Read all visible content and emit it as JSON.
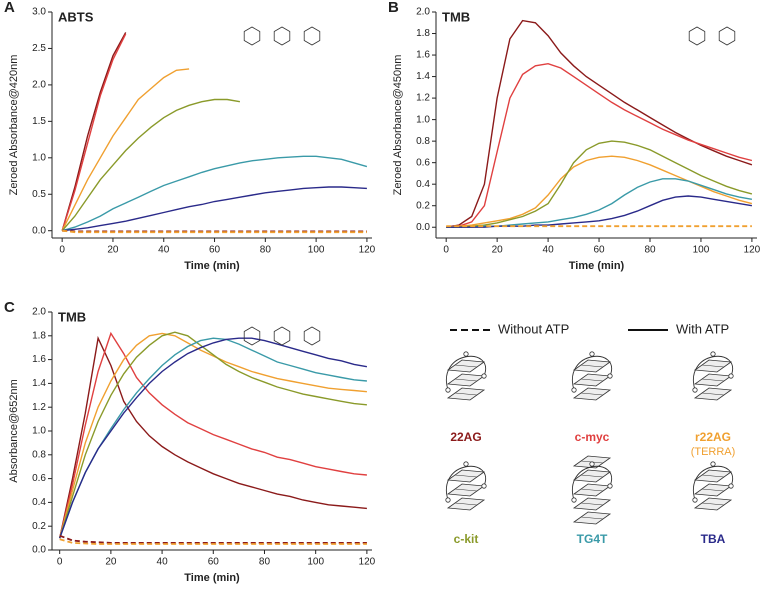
{
  "chart_data": [
    {
      "type": "line",
      "panel": "A",
      "title": "ABTS",
      "x_label": "Time (min)",
      "y_label": "Zeroed Absorbance@420nm",
      "x": [
        0,
        5,
        10,
        15,
        20,
        25,
        30,
        35,
        40,
        45,
        50,
        55,
        60,
        65,
        70,
        75,
        80,
        85,
        90,
        95,
        100,
        105,
        110,
        115,
        120
      ],
      "xlim": [
        -4,
        122
      ],
      "xticks": [
        0,
        20,
        40,
        60,
        80,
        100,
        120
      ],
      "ylim": [
        -0.1,
        3.0
      ],
      "yticks": [
        {
          "value": 0,
          "label": "0.0"
        },
        {
          "value": 0.5,
          "label": "0.5"
        },
        {
          "value": 1,
          "label": "1.0"
        },
        {
          "value": 1.5,
          "label": "1.5"
        },
        {
          "value": 2,
          "label": "2.0"
        },
        {
          "value": 2.5,
          "label": "2.5"
        },
        {
          "value": 3,
          "label": "3.0"
        }
      ],
      "series": [
        {
          "name": "22AG",
          "color": "#8b1a1a",
          "style": "solid",
          "values": [
            0,
            0.6,
            1.3,
            1.9,
            2.4,
            2.72,
            null,
            null,
            null,
            null,
            null,
            null,
            null,
            null,
            null,
            null,
            null,
            null,
            null,
            null,
            null,
            null,
            null,
            null,
            null
          ]
        },
        {
          "name": "c-myc",
          "color": "#e04040",
          "style": "solid",
          "values": [
            0,
            0.55,
            1.2,
            1.85,
            2.35,
            2.7,
            null,
            null,
            null,
            null,
            null,
            null,
            null,
            null,
            null,
            null,
            null,
            null,
            null,
            null,
            null,
            null,
            null,
            null,
            null
          ]
        },
        {
          "name": "r22AG",
          "color": "#f0a030",
          "style": "solid",
          "values": [
            0,
            0.35,
            0.7,
            1.0,
            1.3,
            1.55,
            1.8,
            1.95,
            2.1,
            2.2,
            2.22,
            null,
            null,
            null,
            null,
            null,
            null,
            null,
            null,
            null,
            null,
            null,
            null,
            null,
            null
          ]
        },
        {
          "name": "c-kit",
          "color": "#8a9a2a",
          "style": "solid",
          "values": [
            0,
            0.2,
            0.45,
            0.7,
            0.9,
            1.1,
            1.27,
            1.42,
            1.55,
            1.65,
            1.72,
            1.77,
            1.8,
            1.8,
            1.77,
            null,
            null,
            null,
            null,
            null,
            null,
            null,
            null,
            null,
            null
          ]
        },
        {
          "name": "TG4T",
          "color": "#3a9aa8",
          "style": "solid",
          "values": [
            0,
            0.05,
            0.12,
            0.2,
            0.3,
            0.38,
            0.46,
            0.54,
            0.62,
            0.68,
            0.74,
            0.8,
            0.85,
            0.89,
            0.93,
            0.96,
            0.98,
            1.0,
            1.01,
            1.02,
            1.02,
            1.0,
            0.98,
            0.93,
            0.88
          ]
        },
        {
          "name": "TBA",
          "color": "#2a2a8a",
          "style": "solid",
          "values": [
            0,
            0.02,
            0.04,
            0.07,
            0.1,
            0.13,
            0.17,
            0.21,
            0.25,
            0.29,
            0.33,
            0.36,
            0.4,
            0.43,
            0.46,
            0.49,
            0.52,
            0.54,
            0.56,
            0.58,
            0.59,
            0.6,
            0.6,
            0.59,
            0.58
          ]
        },
        {
          "color": "#8b1a1a",
          "style": "dashed",
          "values": [
            0,
            -0.01,
            -0.01,
            -0.01,
            -0.01,
            -0.01,
            -0.01,
            -0.01,
            -0.01,
            -0.01,
            -0.01,
            -0.01,
            -0.01,
            -0.01,
            -0.01,
            -0.01,
            -0.01,
            -0.01,
            -0.01,
            -0.01,
            -0.01,
            -0.01,
            -0.01,
            -0.01,
            -0.01
          ]
        },
        {
          "color": "#f0a030",
          "style": "dashed",
          "values": [
            0,
            -0.02,
            -0.02,
            -0.02,
            -0.02,
            -0.02,
            -0.02,
            -0.02,
            -0.02,
            -0.02,
            -0.02,
            -0.02,
            -0.02,
            -0.02,
            -0.02,
            -0.02,
            -0.02,
            -0.02,
            -0.02,
            -0.02,
            -0.02,
            -0.02,
            -0.02,
            -0.02,
            -0.02
          ]
        }
      ]
    },
    {
      "type": "line",
      "panel": "B",
      "title": "TMB",
      "x_label": "Time (min)",
      "y_label": "Zeroed Absorbance@450nm",
      "x": [
        0,
        5,
        10,
        15,
        20,
        25,
        30,
        35,
        40,
        45,
        50,
        55,
        60,
        65,
        70,
        75,
        80,
        85,
        90,
        95,
        100,
        105,
        110,
        115,
        120
      ],
      "xlim": [
        -4,
        122
      ],
      "xticks": [
        0,
        20,
        40,
        60,
        80,
        100,
        120
      ],
      "ylim": [
        -0.1,
        2.0
      ],
      "yticks": [
        {
          "value": 0,
          "label": "0.0"
        },
        {
          "value": 0.2,
          "label": "0.2"
        },
        {
          "value": 0.4,
          "label": "0.4"
        },
        {
          "value": 0.6,
          "label": "0.6"
        },
        {
          "value": 0.8,
          "label": "0.8"
        },
        {
          "value": 1,
          "label": "1.0"
        },
        {
          "value": 1.2,
          "label": "1.2"
        },
        {
          "value": 1.4,
          "label": "1.4"
        },
        {
          "value": 1.6,
          "label": "1.6"
        },
        {
          "value": 1.8,
          "label": "1.8"
        },
        {
          "value": 2,
          "label": "2.0"
        }
      ],
      "series": [
        {
          "color": "#8b1a1a",
          "style": "solid",
          "values": [
            0,
            0.02,
            0.1,
            0.4,
            1.2,
            1.75,
            1.92,
            1.9,
            1.78,
            1.62,
            1.5,
            1.4,
            1.32,
            1.24,
            1.16,
            1.09,
            1.02,
            0.95,
            0.88,
            0.82,
            0.76,
            0.71,
            0.66,
            0.62,
            0.58
          ]
        },
        {
          "color": "#e04040",
          "style": "solid",
          "values": [
            0,
            0.01,
            0.05,
            0.2,
            0.7,
            1.2,
            1.42,
            1.5,
            1.52,
            1.48,
            1.4,
            1.32,
            1.24,
            1.16,
            1.09,
            1.03,
            0.97,
            0.91,
            0.86,
            0.81,
            0.77,
            0.73,
            0.69,
            0.65,
            0.62
          ]
        },
        {
          "color": "#f0a030",
          "style": "solid",
          "values": [
            0,
            0.01,
            0.02,
            0.04,
            0.06,
            0.08,
            0.12,
            0.18,
            0.3,
            0.45,
            0.56,
            0.62,
            0.65,
            0.66,
            0.65,
            0.62,
            0.58,
            0.53,
            0.48,
            0.43,
            0.38,
            0.33,
            0.29,
            0.25,
            0.22
          ]
        },
        {
          "color": "#8a9a2a",
          "style": "solid",
          "values": [
            0,
            0,
            0.01,
            0.02,
            0.04,
            0.07,
            0.1,
            0.15,
            0.22,
            0.4,
            0.6,
            0.72,
            0.78,
            0.8,
            0.79,
            0.76,
            0.72,
            0.66,
            0.6,
            0.54,
            0.48,
            0.43,
            0.38,
            0.34,
            0.31
          ]
        },
        {
          "color": "#3a9aa8",
          "style": "solid",
          "values": [
            0,
            0,
            0,
            0.01,
            0.01,
            0.02,
            0.03,
            0.04,
            0.05,
            0.07,
            0.09,
            0.12,
            0.16,
            0.22,
            0.3,
            0.37,
            0.42,
            0.45,
            0.45,
            0.43,
            0.39,
            0.35,
            0.31,
            0.28,
            0.26
          ]
        },
        {
          "color": "#2a2a8a",
          "style": "solid",
          "values": [
            0,
            0,
            0,
            0,
            0.01,
            0.01,
            0.01,
            0.02,
            0.02,
            0.03,
            0.04,
            0.05,
            0.06,
            0.08,
            0.11,
            0.15,
            0.2,
            0.25,
            0.28,
            0.29,
            0.28,
            0.26,
            0.24,
            0.22,
            0.2
          ]
        },
        {
          "color": "#f0a030",
          "style": "dashed",
          "values": [
            0.01,
            0.01,
            0.01,
            0.01,
            0.01,
            0.01,
            0.01,
            0.01,
            0.01,
            0.01,
            0.01,
            0.01,
            0.01,
            0.01,
            0.01,
            0.01,
            0.01,
            0.01,
            0.01,
            0.01,
            0.01,
            0.01,
            0.01,
            0.01,
            0.01
          ]
        }
      ]
    },
    {
      "type": "line",
      "panel": "C",
      "title": "TMB",
      "x_label": "Time (min)",
      "y_label": "Absorbance@652nm",
      "x": [
        0,
        5,
        10,
        15,
        20,
        25,
        30,
        35,
        40,
        45,
        50,
        55,
        60,
        65,
        70,
        75,
        80,
        85,
        90,
        95,
        100,
        105,
        110,
        115,
        120
      ],
      "xlim": [
        -3,
        122
      ],
      "xticks": [
        0,
        20,
        40,
        60,
        80,
        100,
        120
      ],
      "ylim": [
        0,
        2.0
      ],
      "yticks": [
        {
          "value": 0,
          "label": "0.0"
        },
        {
          "value": 0.2,
          "label": "0.2"
        },
        {
          "value": 0.4,
          "label": "0.4"
        },
        {
          "value": 0.6,
          "label": "0.6"
        },
        {
          "value": 0.8,
          "label": "0.8"
        },
        {
          "value": 1,
          "label": "1.0"
        },
        {
          "value": 1.2,
          "label": "1.2"
        },
        {
          "value": 1.4,
          "label": "1.4"
        },
        {
          "value": 1.6,
          "label": "1.6"
        },
        {
          "value": 1.8,
          "label": "1.8"
        },
        {
          "value": 2,
          "label": "2.0"
        }
      ],
      "series": [
        {
          "color": "#8b1a1a",
          "style": "solid",
          "values": [
            0.1,
            0.6,
            1.15,
            1.78,
            1.55,
            1.25,
            1.08,
            0.96,
            0.87,
            0.8,
            0.74,
            0.69,
            0.64,
            0.6,
            0.56,
            0.53,
            0.5,
            0.47,
            0.45,
            0.42,
            0.4,
            0.38,
            0.37,
            0.36,
            0.35
          ]
        },
        {
          "color": "#e04040",
          "style": "solid",
          "values": [
            0.1,
            0.55,
            1.05,
            1.5,
            1.82,
            1.65,
            1.45,
            1.32,
            1.22,
            1.14,
            1.07,
            1.02,
            0.97,
            0.93,
            0.89,
            0.85,
            0.82,
            0.78,
            0.76,
            0.73,
            0.7,
            0.68,
            0.66,
            0.64,
            0.63
          ]
        },
        {
          "color": "#f0a030",
          "style": "solid",
          "values": [
            0.1,
            0.5,
            0.9,
            1.2,
            1.42,
            1.6,
            1.72,
            1.8,
            1.82,
            1.8,
            1.74,
            1.68,
            1.63,
            1.58,
            1.54,
            1.5,
            1.47,
            1.44,
            1.42,
            1.4,
            1.38,
            1.36,
            1.35,
            1.34,
            1.33
          ]
        },
        {
          "color": "#8a9a2a",
          "style": "solid",
          "values": [
            0.1,
            0.45,
            0.8,
            1.08,
            1.3,
            1.48,
            1.62,
            1.72,
            1.8,
            1.83,
            1.8,
            1.72,
            1.64,
            1.56,
            1.5,
            1.45,
            1.41,
            1.37,
            1.34,
            1.31,
            1.29,
            1.27,
            1.25,
            1.23,
            1.22
          ]
        },
        {
          "color": "#3a9aa8",
          "style": "solid",
          "values": [
            0.1,
            0.4,
            0.65,
            0.85,
            1.02,
            1.18,
            1.32,
            1.44,
            1.55,
            1.64,
            1.71,
            1.76,
            1.78,
            1.77,
            1.73,
            1.68,
            1.63,
            1.58,
            1.55,
            1.52,
            1.49,
            1.47,
            1.45,
            1.43,
            1.42
          ]
        },
        {
          "color": "#2a2a8a",
          "style": "solid",
          "values": [
            0.1,
            0.4,
            0.65,
            0.85,
            1.0,
            1.15,
            1.28,
            1.4,
            1.5,
            1.58,
            1.65,
            1.7,
            1.74,
            1.77,
            1.78,
            1.78,
            1.76,
            1.73,
            1.7,
            1.67,
            1.64,
            1.61,
            1.59,
            1.56,
            1.54
          ]
        },
        {
          "color": "#8b1a1a",
          "style": "dashed",
          "values": [
            0.12,
            0.08,
            0.07,
            0.065,
            0.06,
            0.06,
            0.06,
            0.06,
            0.06,
            0.06,
            0.06,
            0.06,
            0.06,
            0.06,
            0.06,
            0.06,
            0.06,
            0.06,
            0.06,
            0.06,
            0.06,
            0.06,
            0.06,
            0.06,
            0.06
          ]
        },
        {
          "color": "#f0a030",
          "style": "dashed",
          "values": [
            0.09,
            0.06,
            0.055,
            0.05,
            0.05,
            0.05,
            0.05,
            0.05,
            0.05,
            0.05,
            0.05,
            0.05,
            0.05,
            0.05,
            0.05,
            0.05,
            0.05,
            0.05,
            0.05,
            0.05,
            0.05,
            0.05,
            0.05,
            0.05,
            0.05
          ]
        }
      ]
    }
  ],
  "legend": {
    "line_styles": [
      {
        "label": "Without ATP",
        "style": "dashed"
      },
      {
        "label": "With ATP",
        "style": "solid"
      }
    ],
    "terra_note": "(TERRA)"
  }
}
